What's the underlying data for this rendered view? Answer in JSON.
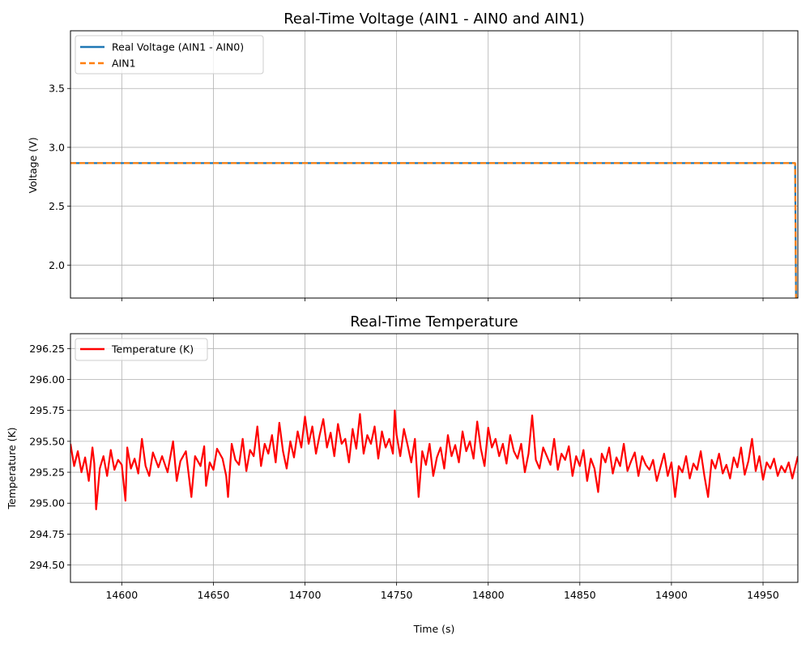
{
  "chart_data": [
    {
      "type": "line",
      "title": "Real-Time Voltage (AIN1 - AIN0 and AIN1)",
      "xlabel": "",
      "ylabel": "Voltage (V)",
      "xlim": [
        14572,
        14969
      ],
      "ylim": [
        1.72,
        3.99
      ],
      "xticks": [
        14600,
        14650,
        14700,
        14750,
        14800,
        14850,
        14900,
        14950
      ],
      "xtick_labels_shown": false,
      "yticks": [
        2.0,
        2.5,
        3.0,
        3.5
      ],
      "ytick_labels": [
        "2.0",
        "2.5",
        "3.0",
        "3.5"
      ],
      "grid": true,
      "legend_position": "upper-left",
      "series": [
        {
          "name": "Real Voltage (AIN1 - AIN0)",
          "color": "#1f77b4",
          "style": "solid",
          "x": [
            14572,
            14967.5,
            14968,
            14969
          ],
          "y": [
            2.866,
            2.866,
            1.72,
            1.72
          ]
        },
        {
          "name": "AIN1",
          "color": "#ff7f0e",
          "style": "dashed",
          "x": [
            14572,
            14967.5,
            14968,
            14969
          ],
          "y": [
            2.866,
            2.866,
            1.72,
            1.72
          ]
        }
      ]
    },
    {
      "type": "line",
      "title": "Real-Time Temperature",
      "xlabel": "Time (s)",
      "ylabel": "Temperature (K)",
      "xlim": [
        14572,
        14969
      ],
      "ylim": [
        294.36,
        296.37
      ],
      "xticks": [
        14600,
        14650,
        14700,
        14750,
        14800,
        14850,
        14900,
        14950
      ],
      "xtick_labels": [
        "14600",
        "14650",
        "14700",
        "14750",
        "14800",
        "14850",
        "14900",
        "14950"
      ],
      "yticks": [
        294.5,
        294.75,
        295.0,
        295.25,
        295.5,
        295.75,
        296.0,
        296.25
      ],
      "ytick_labels": [
        "294.50",
        "294.75",
        "295.00",
        "295.25",
        "295.50",
        "295.75",
        "296.00",
        "296.25"
      ],
      "grid": true,
      "legend_position": "upper-left",
      "series": [
        {
          "name": "Temperature (K)",
          "color": "#ff0000",
          "style": "solid",
          "x": [
            14572,
            14574,
            14576,
            14578,
            14580,
            14582,
            14584,
            14585,
            14586,
            14588,
            14590,
            14592,
            14594,
            14596,
            14598,
            14600,
            14602,
            14603,
            14605,
            14607,
            14609,
            14611,
            14613,
            14615,
            14617,
            14620,
            14622,
            14625,
            14628,
            14630,
            14632,
            14635,
            14638,
            14640,
            14643,
            14645,
            14646,
            14648,
            14650,
            14652,
            14655,
            14657,
            14658,
            14660,
            14662,
            14664,
            14666,
            14668,
            14670,
            14672,
            14674,
            14676,
            14678,
            14680,
            14682,
            14684,
            14686,
            14688,
            14690,
            14692,
            14694,
            14696,
            14698,
            14700,
            14702,
            14704,
            14706,
            14708,
            14710,
            14712,
            14714,
            14716,
            14718,
            14720,
            14722,
            14724,
            14726,
            14728,
            14730,
            14732,
            14734,
            14736,
            14738,
            14740,
            14742,
            14744,
            14746,
            14748,
            14749,
            14750,
            14752,
            14754,
            14756,
            14758,
            14760,
            14762,
            14764,
            14766,
            14768,
            14770,
            14772,
            14774,
            14776,
            14778,
            14780,
            14782,
            14784,
            14786,
            14788,
            14790,
            14792,
            14794,
            14796,
            14798,
            14800,
            14802,
            14804,
            14806,
            14808,
            14810,
            14812,
            14814,
            14816,
            14818,
            14820,
            14822,
            14824,
            14826,
            14828,
            14830,
            14832,
            14834,
            14836,
            14838,
            14840,
            14842,
            14844,
            14846,
            14848,
            14850,
            14852,
            14854,
            14856,
            14858,
            14860,
            14862,
            14864,
            14866,
            14868,
            14870,
            14872,
            14874,
            14876,
            14878,
            14880,
            14882,
            14884,
            14886,
            14888,
            14890,
            14892,
            14894,
            14896,
            14898,
            14900,
            14902,
            14904,
            14906,
            14908,
            14910,
            14912,
            14914,
            14916,
            14918,
            14920,
            14922,
            14924,
            14926,
            14928,
            14930,
            14932,
            14934,
            14936,
            14938,
            14940,
            14942,
            14944,
            14946,
            14948,
            14950,
            14952,
            14954,
            14956,
            14958,
            14960,
            14962,
            14964,
            14966,
            14969
          ],
          "y": [
            295.48,
            295.3,
            295.42,
            295.25,
            295.37,
            295.18,
            295.45,
            295.32,
            294.95,
            295.28,
            295.38,
            295.22,
            295.43,
            295.27,
            295.35,
            295.31,
            295.02,
            295.45,
            295.28,
            295.36,
            295.24,
            295.52,
            295.3,
            295.22,
            295.41,
            295.29,
            295.38,
            295.25,
            295.5,
            295.18,
            295.34,
            295.42,
            295.05,
            295.38,
            295.3,
            295.46,
            295.14,
            295.33,
            295.27,
            295.44,
            295.36,
            295.22,
            295.05,
            295.48,
            295.35,
            295.31,
            295.52,
            295.26,
            295.43,
            295.38,
            295.62,
            295.3,
            295.48,
            295.4,
            295.55,
            295.33,
            295.65,
            295.42,
            295.28,
            295.5,
            295.37,
            295.58,
            295.45,
            295.7,
            295.48,
            295.62,
            295.4,
            295.55,
            295.68,
            295.45,
            295.57,
            295.38,
            295.64,
            295.48,
            295.52,
            295.33,
            295.6,
            295.44,
            295.72,
            295.4,
            295.55,
            295.48,
            295.62,
            295.36,
            295.58,
            295.45,
            295.52,
            295.4,
            295.75,
            295.55,
            295.38,
            295.6,
            295.47,
            295.33,
            295.52,
            295.05,
            295.42,
            295.31,
            295.48,
            295.22,
            295.37,
            295.45,
            295.28,
            295.55,
            295.38,
            295.47,
            295.33,
            295.58,
            295.42,
            295.5,
            295.36,
            295.66,
            295.44,
            295.3,
            295.61,
            295.45,
            295.52,
            295.38,
            295.48,
            295.32,
            295.55,
            295.42,
            295.36,
            295.48,
            295.25,
            295.4,
            295.71,
            295.35,
            295.28,
            295.45,
            295.38,
            295.31,
            295.52,
            295.27,
            295.4,
            295.35,
            295.46,
            295.22,
            295.38,
            295.3,
            295.43,
            295.18,
            295.36,
            295.28,
            295.09,
            295.4,
            295.33,
            295.45,
            295.24,
            295.37,
            295.3,
            295.48,
            295.26,
            295.34,
            295.41,
            295.22,
            295.38,
            295.31,
            295.27,
            295.35,
            295.18,
            295.29,
            295.4,
            295.22,
            295.33,
            295.05,
            295.3,
            295.25,
            295.38,
            295.2,
            295.32,
            295.27,
            295.42,
            295.22,
            295.05,
            295.35,
            295.28,
            295.4,
            295.24,
            295.31,
            295.2,
            295.37,
            295.29,
            295.45,
            295.23,
            295.34,
            295.52,
            295.26,
            295.38,
            295.19,
            295.33,
            295.28,
            295.36,
            295.22,
            295.3,
            295.25,
            295.33,
            295.2,
            295.38
          ]
        }
      ]
    }
  ]
}
